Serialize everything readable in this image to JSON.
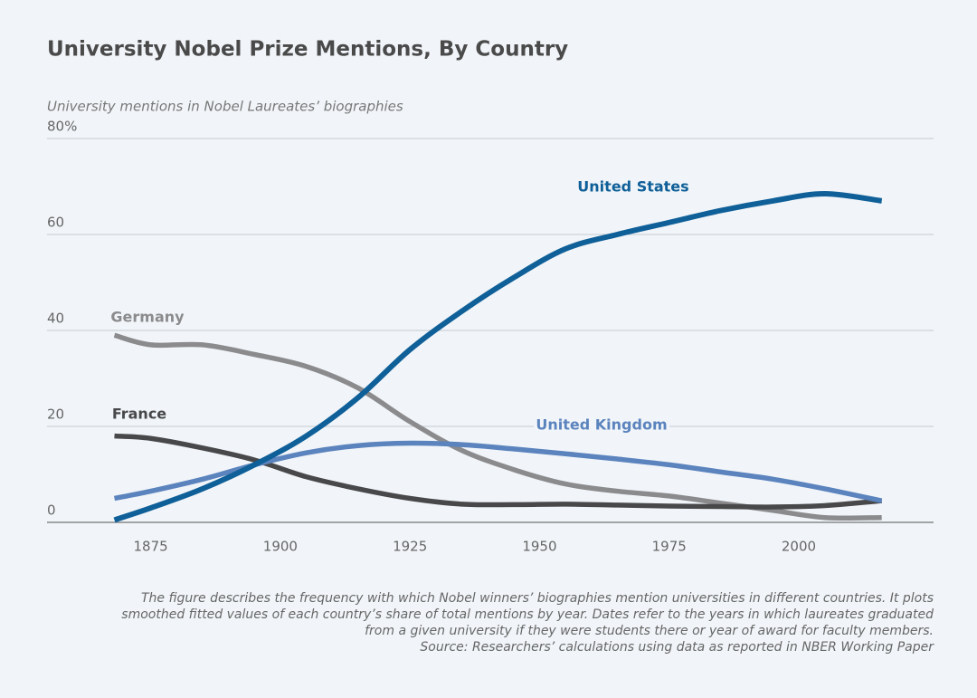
{
  "chart_data": {
    "type": "line",
    "title": "University Nobel Prize Mentions, By Country",
    "y_label": "University mentions in Nobel Laureates’ biographies",
    "x": [
      1868,
      1875,
      1885,
      1895,
      1905,
      1915,
      1925,
      1935,
      1945,
      1955,
      1965,
      1975,
      1985,
      1995,
      2005,
      2016
    ],
    "series": [
      {
        "name": "United States",
        "color": "#0f5f98",
        "values": [
          0.5,
          3,
          7,
          12,
          18,
          26,
          36,
          44,
          51,
          57,
          60,
          62.5,
          65,
          67,
          68.5,
          67
        ]
      },
      {
        "name": "Germany",
        "color": "#8b8b8d",
        "values": [
          39,
          37,
          37,
          35,
          32.5,
          28,
          21,
          15,
          11,
          8,
          6.5,
          5.5,
          4,
          2.5,
          1,
          1
        ]
      },
      {
        "name": "France",
        "color": "#48484a",
        "values": [
          18,
          17.5,
          15.5,
          13,
          9.5,
          7,
          5,
          3.8,
          3.7,
          3.8,
          3.6,
          3.4,
          3.3,
          3.2,
          3.5,
          4.5
        ]
      },
      {
        "name": "United Kingdom",
        "color": "#5b83bd",
        "values": [
          5,
          6.5,
          9,
          12,
          14.5,
          16,
          16.5,
          16.2,
          15.3,
          14.3,
          13.2,
          12,
          10.5,
          9,
          7,
          4.5
        ]
      }
    ],
    "xlim": [
      1855,
      2026
    ],
    "ylim": [
      0,
      80
    ],
    "xticks": [
      1875,
      1900,
      1925,
      1950,
      1975,
      2000
    ],
    "yticks": [
      0,
      20,
      40,
      60,
      {
        "value": 80,
        "label": "80%"
      }
    ],
    "grid": true,
    "notes": [
      "The figure describes the frequency with which Nobel winners’ biographies mention universities in different countries. It plots",
      "smoothed fitted values of each country’s share of total mentions by year. Dates refer to the years in which laureates graduated",
      "from a given university if they were students there or year of award for faculty members.",
      "Source: Researchers’ calculations using data as reported in NBER Working Paper"
    ]
  }
}
